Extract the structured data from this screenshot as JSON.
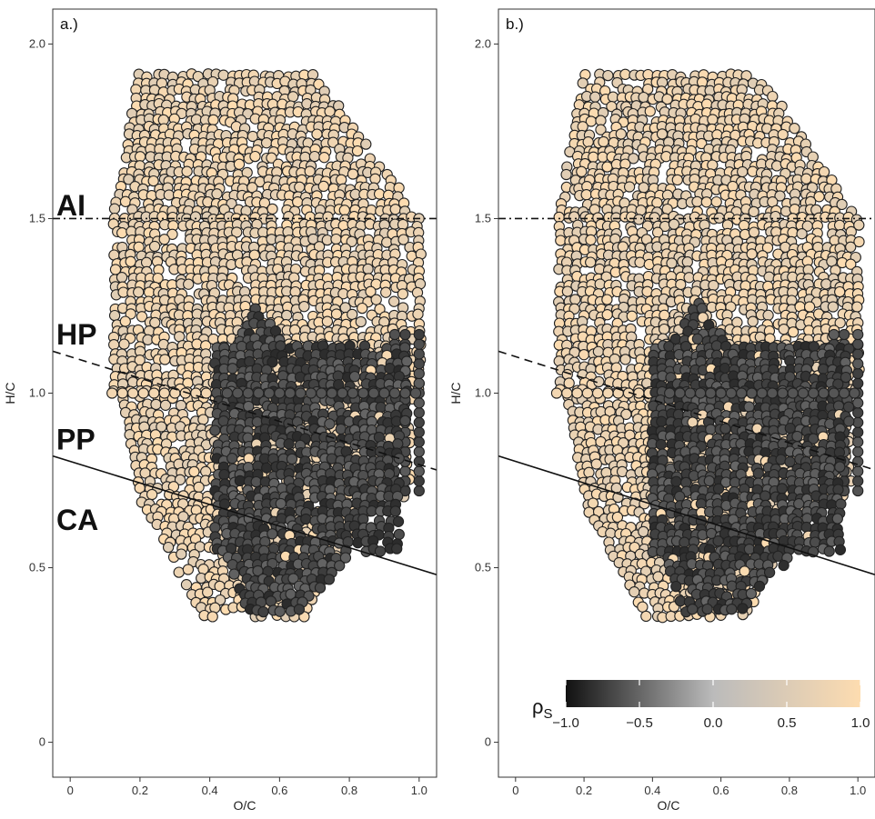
{
  "colors": {
    "negative": "#111111",
    "zero": "#bbbbbb",
    "positive": "#fddcb0",
    "point_stroke": "#222222"
  },
  "chart_data": [
    {
      "type": "scatter",
      "panel_label": "a.)",
      "xlabel": "O/C",
      "ylabel": "H/C",
      "xlim": [
        -0.05,
        1.05
      ],
      "ylim": [
        -0.1,
        2.1
      ],
      "x_ticks": [
        "0",
        "0.2",
        "0.4",
        "0.6",
        "0.8",
        "1.0"
      ],
      "y_ticks": [
        "0",
        "0.5",
        "1.0",
        "1.5",
        "2.0"
      ],
      "grid": false,
      "color_variable": "ρS",
      "region_labels": [
        "AI",
        "HP",
        "PP",
        "CA"
      ],
      "reference_lines": [
        {
          "style": "dash-dot",
          "y": 1.5
        },
        {
          "style": "dashed",
          "x": [
            -0.05,
            1.05
          ],
          "y": [
            1.12,
            0.78
          ]
        },
        {
          "style": "solid",
          "x": [
            -0.05,
            1.05
          ],
          "y": [
            0.82,
            0.48
          ]
        }
      ],
      "clusters": [
        {
          "name": "positive (light)",
          "x_range": [
            0.12,
            1.0
          ],
          "y_range": [
            0.35,
            1.92
          ],
          "rho_S": 0.8
        },
        {
          "name": "negative (dark)",
          "x_range": [
            0.42,
            1.0
          ],
          "y_range": [
            0.35,
            1.27
          ],
          "rho_S": -0.6
        }
      ]
    },
    {
      "type": "scatter",
      "panel_label": "b.)",
      "xlabel": "O/C",
      "ylabel": "H/C",
      "xlim": [
        -0.05,
        1.05
      ],
      "ylim": [
        -0.1,
        2.1
      ],
      "x_ticks": [
        "0",
        "0.2",
        "0.4",
        "0.6",
        "0.8",
        "1.0"
      ],
      "y_ticks": [
        "0",
        "0.5",
        "1.0",
        "1.5",
        "2.0"
      ],
      "grid": false,
      "color_variable": "ρS",
      "reference_lines": [
        {
          "style": "dash-dot",
          "y": 1.5
        },
        {
          "style": "dashed",
          "x": [
            -0.05,
            1.05
          ],
          "y": [
            1.12,
            0.78
          ]
        },
        {
          "style": "solid",
          "x": [
            -0.05,
            1.05
          ],
          "y": [
            0.82,
            0.48
          ]
        }
      ],
      "clusters": [
        {
          "name": "positive (light)",
          "x_range": [
            0.12,
            1.0
          ],
          "y_range": [
            0.35,
            1.92
          ],
          "rho_S": 0.8
        },
        {
          "name": "negative (dark)",
          "x_range": [
            0.4,
            1.0
          ],
          "y_range": [
            0.35,
            1.27
          ],
          "rho_S": -0.65
        }
      ],
      "colorbar": {
        "title": "ρS",
        "range": [
          -1.0,
          1.0
        ],
        "ticks": [
          "−1.0",
          "−0.5",
          "0.0",
          "0.5",
          "1.0"
        ]
      }
    }
  ]
}
